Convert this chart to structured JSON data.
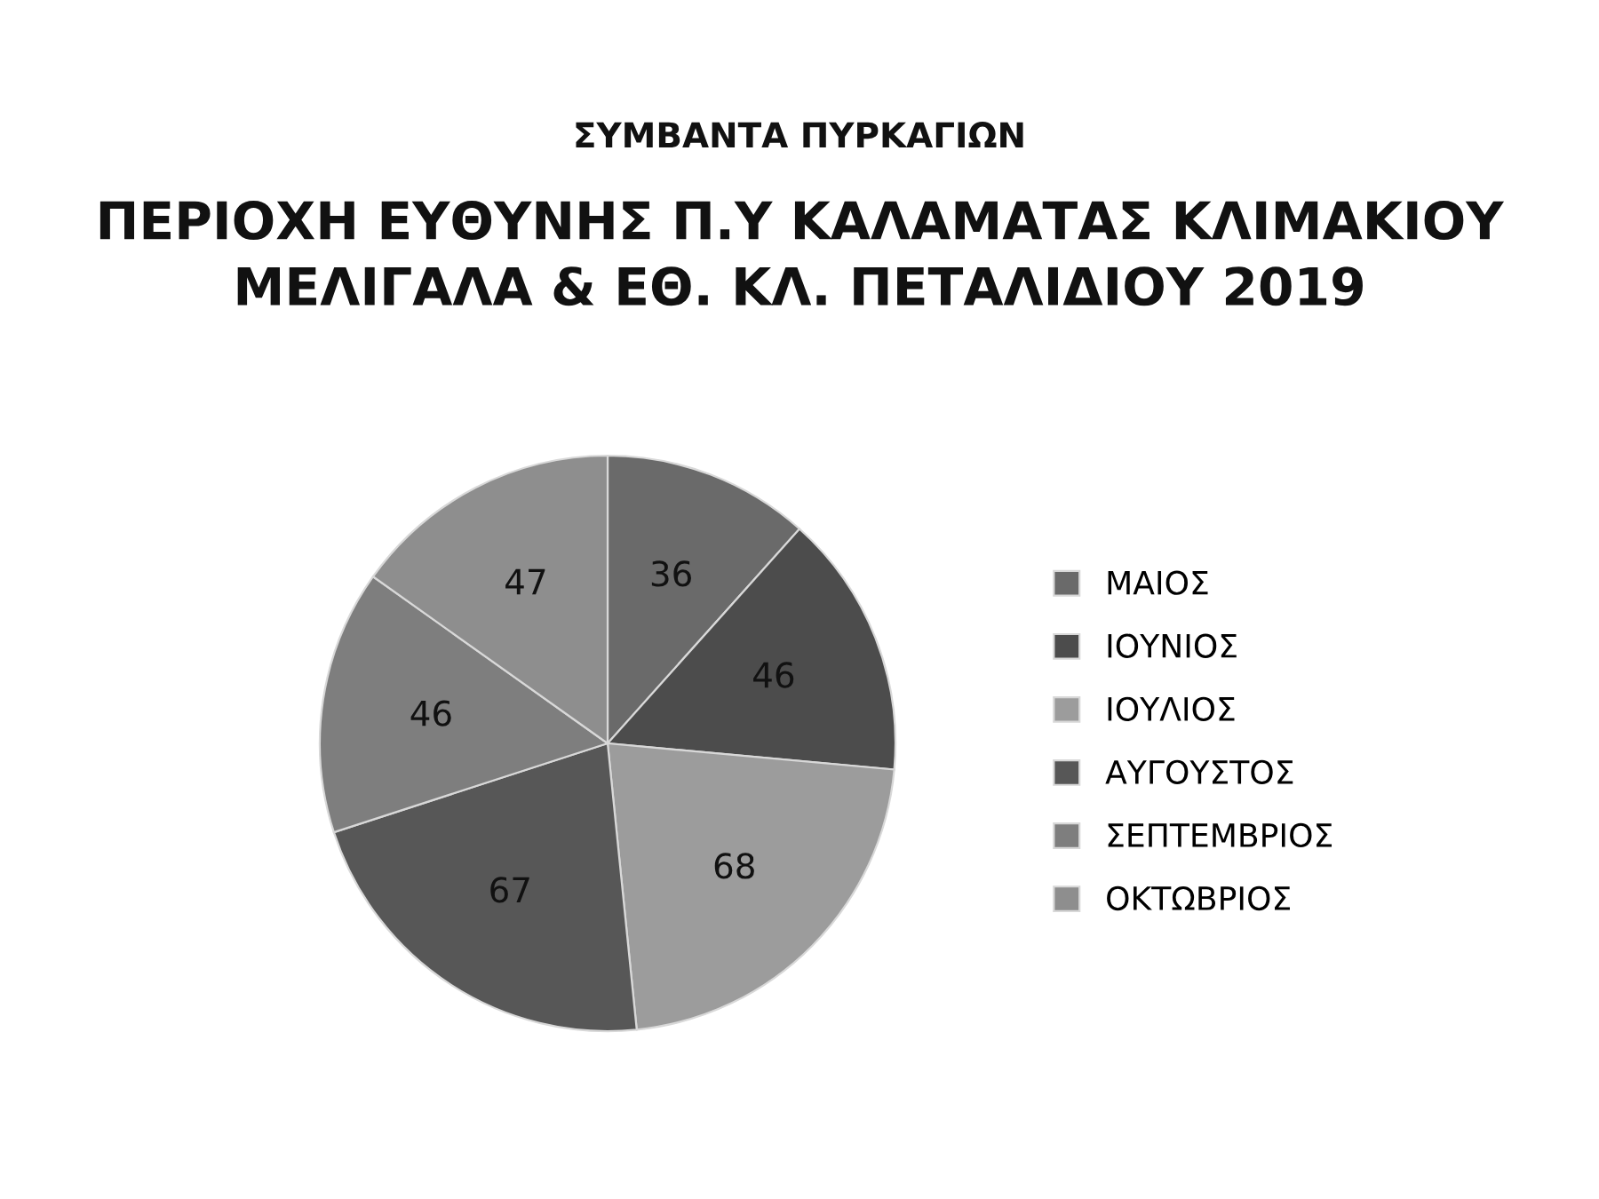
{
  "chart_data": {
    "type": "pie",
    "title": "ΣΥΜΒΑΝΤΑ ΠΥΡΚΑΓΙΩΝ",
    "subtitle": "ΠΕΡΙΟΧΗ ΕΥΘΥΝΗΣ Π.Υ ΚΑΛΑΜΑΤΑΣ ΚΛΙΜΑΚΙΟΥ ΜΕΛΙΓΑΛΑ & ΕΘ. ΚΛ. ΠΕΤΑΛΙΔΙΟΥ 2019",
    "categories": [
      "ΜΑΙΟΣ",
      "ΙΟΥΝΙΟΣ",
      "ΙΟΥΛΙΟΣ",
      "ΑΥΓΟΥΣΤΟΣ",
      "ΣΕΠΤΕΜΒΡΙΟΣ",
      "ΟΚΤΩΒΡΙΟΣ"
    ],
    "values": [
      36,
      46,
      68,
      67,
      46,
      47
    ],
    "colors": [
      "#6a6a6a",
      "#4c4c4c",
      "#9c9c9c",
      "#575757",
      "#7e7e7e",
      "#8e8e8e"
    ],
    "data_labels": true,
    "legend": "right"
  }
}
